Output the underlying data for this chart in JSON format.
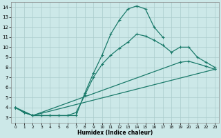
{
  "xlabel": "Humidex (Indice chaleur)",
  "bg_color": "#cce8e8",
  "grid_color": "#aacccc",
  "line_color": "#1a7a6a",
  "xlim": [
    -0.5,
    23.5
  ],
  "ylim": [
    2.5,
    14.5
  ],
  "xticks": [
    0,
    1,
    2,
    3,
    4,
    5,
    6,
    7,
    8,
    9,
    10,
    11,
    12,
    13,
    14,
    15,
    16,
    17,
    18,
    19,
    20,
    21,
    22,
    23
  ],
  "yticks": [
    3,
    4,
    5,
    6,
    7,
    8,
    9,
    10,
    11,
    12,
    13,
    14
  ],
  "line1_x": [
    0,
    1,
    2,
    3,
    4,
    5,
    6,
    7,
    8,
    9,
    10,
    11,
    12,
    13,
    14,
    15,
    16,
    17
  ],
  "line1_y": [
    4.0,
    3.5,
    3.2,
    3.2,
    3.2,
    3.2,
    3.2,
    3.2,
    5.4,
    7.4,
    9.2,
    11.3,
    12.7,
    13.8,
    14.1,
    13.8,
    12.0,
    11.0
  ],
  "line2_x": [
    0,
    1,
    2,
    3,
    4,
    5,
    6,
    7,
    8,
    9,
    10,
    11,
    12,
    13,
    14,
    15,
    16,
    17,
    18,
    19,
    20,
    21,
    22,
    23
  ],
  "line2_y": [
    4.0,
    3.5,
    3.2,
    3.2,
    3.2,
    3.2,
    3.2,
    3.5,
    5.2,
    7.0,
    8.3,
    9.2,
    9.9,
    10.5,
    11.3,
    11.1,
    10.7,
    10.2,
    9.5,
    10.0,
    10.0,
    9.0,
    8.5,
    8.0
  ],
  "line3_x": [
    0,
    2,
    23
  ],
  "line3_y": [
    4.0,
    3.2,
    7.8
  ],
  "line4_x": [
    0,
    2,
    19,
    20,
    22,
    23
  ],
  "line4_y": [
    4.0,
    3.2,
    8.5,
    8.6,
    8.1,
    7.8
  ]
}
